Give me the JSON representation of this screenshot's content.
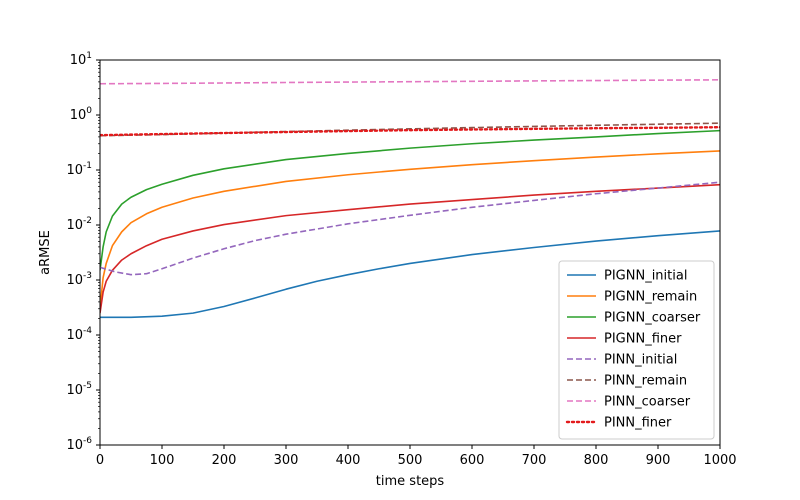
{
  "chart_data": {
    "type": "line",
    "title": "",
    "xlabel": "time steps",
    "ylabel": "aRMSE",
    "xlim": [
      0,
      1000
    ],
    "ylim": [
      1e-06,
      10
    ],
    "yscale": "log",
    "grid": false,
    "legend_position": "lower right",
    "x_ticks": [
      0,
      100,
      200,
      300,
      400,
      500,
      600,
      700,
      800,
      900,
      1000
    ],
    "x_tick_labels": [
      "0",
      "100",
      "200",
      "300",
      "400",
      "500",
      "600",
      "700",
      "800",
      "900",
      "1000"
    ],
    "y_ticks": [
      1e-06,
      1e-05,
      0.0001,
      0.001,
      0.01,
      0.1,
      1,
      10
    ],
    "y_tick_exponents": [
      "-6",
      "-5",
      "-4",
      "-3",
      "-2",
      "-1",
      "0",
      "1"
    ],
    "y_tick_base": "10",
    "series": [
      {
        "name": "PIGNN_initial",
        "color": "#1f77b4",
        "dash": "solid",
        "x": [
          0,
          50,
          100,
          150,
          200,
          250,
          300,
          350,
          400,
          450,
          500,
          600,
          700,
          800,
          900,
          1000
        ],
        "y": [
          0.00021,
          0.00021,
          0.00022,
          0.00025,
          0.00033,
          0.00047,
          0.00068,
          0.00095,
          0.00125,
          0.0016,
          0.002,
          0.0029,
          0.0039,
          0.0051,
          0.0064,
          0.0078
        ]
      },
      {
        "name": "PIGNN_remain",
        "color": "#ff7f0e",
        "dash": "solid",
        "x": [
          0,
          5,
          10,
          20,
          35,
          50,
          75,
          100,
          150,
          200,
          300,
          400,
          500,
          600,
          700,
          800,
          900,
          1000
        ],
        "y": [
          0.0003,
          0.0011,
          0.002,
          0.0042,
          0.0075,
          0.011,
          0.016,
          0.021,
          0.031,
          0.041,
          0.062,
          0.082,
          0.103,
          0.125,
          0.148,
          0.172,
          0.197,
          0.222
        ]
      },
      {
        "name": "PIGNN_coarser",
        "color": "#2ca02c",
        "dash": "solid",
        "x": [
          0,
          5,
          10,
          20,
          35,
          50,
          75,
          100,
          150,
          200,
          300,
          400,
          500,
          600,
          700,
          800,
          900,
          1000
        ],
        "y": [
          0.0015,
          0.004,
          0.0075,
          0.0145,
          0.024,
          0.032,
          0.044,
          0.055,
          0.08,
          0.105,
          0.155,
          0.2,
          0.25,
          0.3,
          0.35,
          0.4,
          0.46,
          0.52
        ]
      },
      {
        "name": "PIGNN_finer",
        "color": "#d62728",
        "dash": "solid",
        "x": [
          0,
          5,
          10,
          20,
          35,
          50,
          75,
          100,
          150,
          200,
          300,
          400,
          500,
          600,
          700,
          800,
          900,
          1000
        ],
        "y": [
          0.00025,
          0.0006,
          0.00095,
          0.0015,
          0.0023,
          0.003,
          0.0042,
          0.0055,
          0.0078,
          0.0102,
          0.0148,
          0.019,
          0.024,
          0.029,
          0.035,
          0.041,
          0.047,
          0.054
        ]
      },
      {
        "name": "PINN_initial",
        "color": "#9467bd",
        "dash": "dashed",
        "x": [
          0,
          25,
          50,
          75,
          100,
          150,
          200,
          250,
          300,
          400,
          500,
          600,
          700,
          800,
          900,
          1000
        ],
        "y": [
          0.0017,
          0.0014,
          0.00125,
          0.0013,
          0.0016,
          0.0025,
          0.0037,
          0.0052,
          0.0068,
          0.0105,
          0.015,
          0.021,
          0.028,
          0.037,
          0.047,
          0.06
        ]
      },
      {
        "name": "PINN_remain",
        "color": "#8c564b",
        "dash": "dashed",
        "x": [
          0,
          100,
          200,
          300,
          400,
          500,
          600,
          700,
          800,
          900,
          1000
        ],
        "y": [
          0.42,
          0.44,
          0.47,
          0.5,
          0.53,
          0.56,
          0.59,
          0.62,
          0.65,
          0.68,
          0.71
        ]
      },
      {
        "name": "PINN_coarser",
        "color": "#e377c2",
        "dash": "dashed",
        "x": [
          0,
          100,
          200,
          300,
          400,
          500,
          600,
          700,
          800,
          900,
          1000
        ],
        "y": [
          3.7,
          3.75,
          3.82,
          3.9,
          3.97,
          4.03,
          4.1,
          4.17,
          4.23,
          4.3,
          4.36
        ]
      },
      {
        "name": "PINN_finer",
        "color": "#e31a1c",
        "dash": "dotted",
        "x": [
          0,
          100,
          200,
          300,
          400,
          500,
          600,
          700,
          800,
          900,
          1000
        ],
        "y": [
          0.43,
          0.45,
          0.47,
          0.49,
          0.51,
          0.53,
          0.545,
          0.56,
          0.575,
          0.585,
          0.6
        ]
      }
    ]
  }
}
